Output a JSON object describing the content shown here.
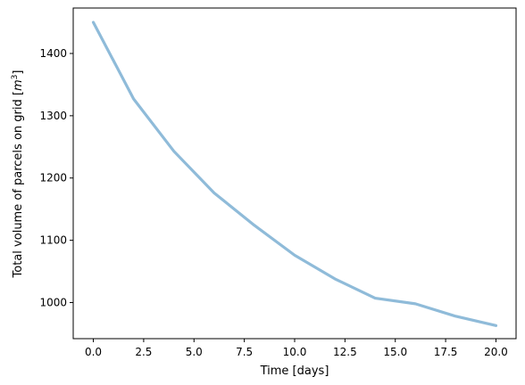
{
  "chart_data": {
    "type": "line",
    "xlabel": "Time [days]",
    "ylabel_prefix": "Total volume of parcels on grid [",
    "ylabel_base": "m",
    "ylabel_exp": "3",
    "ylabel_suffix": "]",
    "xlim": [
      -1,
      21
    ],
    "ylim": [
      942,
      1473
    ],
    "xticks": [
      0.0,
      2.5,
      5.0,
      7.5,
      10.0,
      12.5,
      15.0,
      17.5,
      20.0
    ],
    "xtick_labels": [
      "0.0",
      "2.5",
      "5.0",
      "7.5",
      "10.0",
      "12.5",
      "15.0",
      "17.5",
      "20.0"
    ],
    "yticks": [
      1000,
      1100,
      1200,
      1300,
      1400
    ],
    "ytick_labels": [
      "1000",
      "1100",
      "1200",
      "1300",
      "1400"
    ],
    "grid": false,
    "series": [
      {
        "color": "#8fbbd9",
        "x": [
          0,
          2,
          4,
          6,
          8,
          10,
          12,
          14,
          16,
          18,
          20
        ],
        "y": [
          1450,
          1327,
          1243,
          1176,
          1124,
          1076,
          1038,
          1007,
          998,
          978,
          963
        ]
      }
    ]
  }
}
